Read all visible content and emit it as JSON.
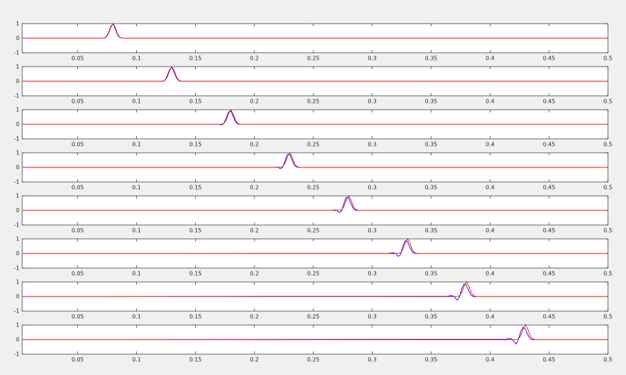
{
  "chart_data": [
    {
      "type": "line",
      "xlim": [
        0.003,
        0.5
      ],
      "ylim": [
        -1,
        1
      ],
      "xticks": [
        0.05,
        0.1,
        0.15,
        0.2,
        0.25,
        0.3,
        0.35,
        0.4,
        0.45,
        0.5
      ],
      "yticks": [
        -1,
        0,
        1
      ],
      "x": [
        0.003,
        0.064,
        0.066,
        0.068,
        0.07,
        0.072,
        0.074,
        0.076,
        0.078,
        0.08,
        0.082,
        0.084,
        0.086,
        0.088,
        0.09,
        0.092,
        0.094,
        0.096,
        0.5
      ],
      "series": [
        {
          "color": "#0000ff",
          "values": [
            0,
            0,
            0,
            0,
            0,
            0.01,
            0.07,
            0.33,
            0.78,
            0.98,
            0.64,
            0.22,
            0.04,
            0.01,
            0,
            0,
            0,
            0,
            0
          ]
        },
        {
          "color": "#ff0000",
          "values": [
            0,
            0,
            0,
            0,
            0,
            0.01,
            0.05,
            0.27,
            0.72,
            1,
            0.72,
            0.27,
            0.05,
            0.01,
            0,
            0,
            0,
            0,
            0
          ]
        }
      ]
    },
    {
      "type": "line",
      "xlim": [
        0.003,
        0.5
      ],
      "ylim": [
        -1,
        1
      ],
      "xticks": [
        0.05,
        0.1,
        0.15,
        0.2,
        0.25,
        0.3,
        0.35,
        0.4,
        0.45,
        0.5
      ],
      "yticks": [
        -1,
        0,
        1
      ],
      "x": [
        0.003,
        0.114,
        0.116,
        0.118,
        0.12,
        0.122,
        0.124,
        0.126,
        0.128,
        0.13,
        0.132,
        0.134,
        0.136,
        0.138,
        0.14,
        0.142,
        0.144,
        0.146,
        0.5
      ],
      "series": [
        {
          "color": "#0000ff",
          "values": [
            0,
            0,
            0,
            0,
            0,
            -0.01,
            0.06,
            0.35,
            0.8,
            0.96,
            0.6,
            0.2,
            0.03,
            0,
            0,
            0,
            0,
            0,
            0
          ]
        },
        {
          "color": "#ff0000",
          "values": [
            0,
            0,
            0,
            0,
            0,
            0.01,
            0.05,
            0.27,
            0.72,
            1,
            0.72,
            0.27,
            0.05,
            0.01,
            0,
            0,
            0,
            0,
            0
          ]
        }
      ]
    },
    {
      "type": "line",
      "xlim": [
        0.003,
        0.5
      ],
      "ylim": [
        -1,
        1
      ],
      "xticks": [
        0.05,
        0.1,
        0.15,
        0.2,
        0.25,
        0.3,
        0.35,
        0.4,
        0.45,
        0.5
      ],
      "yticks": [
        -1,
        0,
        1
      ],
      "x": [
        0.003,
        0.164,
        0.166,
        0.168,
        0.17,
        0.172,
        0.174,
        0.176,
        0.178,
        0.18,
        0.182,
        0.184,
        0.186,
        0.188,
        0.19,
        0.192,
        0.194,
        0.196,
        0.5
      ],
      "series": [
        {
          "color": "#0000ff",
          "values": [
            0,
            0,
            0,
            0,
            0.01,
            -0.04,
            0.05,
            0.4,
            0.85,
            0.92,
            0.55,
            0.17,
            0.02,
            0,
            0,
            0,
            0,
            0,
            0
          ]
        },
        {
          "color": "#ff0000",
          "values": [
            0,
            0,
            0,
            0,
            0,
            0.01,
            0.05,
            0.27,
            0.72,
            1,
            0.72,
            0.27,
            0.05,
            0.01,
            0,
            0,
            0,
            0,
            0
          ]
        }
      ]
    },
    {
      "type": "line",
      "xlim": [
        0.003,
        0.5
      ],
      "ylim": [
        -1,
        1
      ],
      "xticks": [
        0.05,
        0.1,
        0.15,
        0.2,
        0.25,
        0.3,
        0.35,
        0.4,
        0.45,
        0.5
      ],
      "yticks": [
        -1,
        0,
        1
      ],
      "x": [
        0.003,
        0.214,
        0.216,
        0.218,
        0.22,
        0.222,
        0.224,
        0.226,
        0.228,
        0.23,
        0.232,
        0.234,
        0.236,
        0.238,
        0.24,
        0.242,
        0.244,
        0.246,
        0.5
      ],
      "series": [
        {
          "color": "#0000ff",
          "values": [
            0,
            0,
            0,
            0.01,
            0.02,
            -0.1,
            0,
            0.45,
            0.88,
            0.88,
            0.5,
            0.14,
            0.02,
            0,
            0,
            0,
            0,
            0,
            0
          ]
        },
        {
          "color": "#ff0000",
          "values": [
            0,
            0,
            0,
            0,
            0,
            0.01,
            0.05,
            0.27,
            0.72,
            1,
            0.72,
            0.27,
            0.05,
            0.01,
            0,
            0,
            0,
            0,
            0
          ]
        }
      ]
    },
    {
      "type": "line",
      "xlim": [
        0.003,
        0.5
      ],
      "ylim": [
        -1,
        1
      ],
      "xticks": [
        0.05,
        0.1,
        0.15,
        0.2,
        0.25,
        0.3,
        0.35,
        0.4,
        0.45,
        0.5
      ],
      "yticks": [
        -1,
        0,
        1
      ],
      "x": [
        0.003,
        0.264,
        0.266,
        0.268,
        0.27,
        0.272,
        0.274,
        0.276,
        0.278,
        0.28,
        0.282,
        0.284,
        0.286,
        0.288,
        0.29,
        0.292,
        0.294,
        0.296,
        0.5
      ],
      "series": [
        {
          "color": "#0000ff",
          "values": [
            0,
            0,
            0.01,
            0.03,
            0.02,
            -0.15,
            -0.05,
            0.5,
            0.9,
            0.84,
            0.45,
            0.12,
            0.01,
            0,
            0,
            0,
            0,
            0,
            0
          ]
        },
        {
          "color": "#ff0000",
          "values": [
            0,
            0,
            0,
            0,
            0,
            0.01,
            0.05,
            0.27,
            0.72,
            1,
            0.72,
            0.27,
            0.05,
            0.01,
            0,
            0,
            0,
            0,
            0
          ]
        }
      ]
    },
    {
      "type": "line",
      "xlim": [
        0.003,
        0.5
      ],
      "ylim": [
        -1,
        1
      ],
      "xticks": [
        0.05,
        0.1,
        0.15,
        0.2,
        0.25,
        0.3,
        0.35,
        0.4,
        0.45,
        0.5
      ],
      "yticks": [
        -1,
        0,
        1
      ],
      "x": [
        0.003,
        0.314,
        0.316,
        0.318,
        0.32,
        0.322,
        0.324,
        0.326,
        0.328,
        0.33,
        0.332,
        0.334,
        0.336,
        0.338,
        0.34,
        0.342,
        0.344,
        0.346,
        0.5
      ],
      "series": [
        {
          "color": "#0000ff",
          "values": [
            0,
            0.01,
            0.03,
            0.05,
            0,
            -0.2,
            -0.08,
            0.52,
            0.88,
            0.8,
            0.4,
            0.1,
            0.01,
            0,
            0,
            0,
            0,
            0,
            0
          ]
        },
        {
          "color": "#ff0000",
          "values": [
            0,
            0,
            0,
            0,
            0,
            0.01,
            0.05,
            0.27,
            0.72,
            1,
            0.72,
            0.27,
            0.05,
            0.01,
            0,
            0,
            0,
            0,
            0
          ]
        }
      ]
    },
    {
      "type": "line",
      "xlim": [
        0.003,
        0.5
      ],
      "ylim": [
        -1,
        1
      ],
      "xticks": [
        0.05,
        0.1,
        0.15,
        0.2,
        0.25,
        0.3,
        0.35,
        0.4,
        0.45,
        0.5
      ],
      "yticks": [
        -1,
        0,
        1
      ],
      "x": [
        0.003,
        0.364,
        0.366,
        0.368,
        0.37,
        0.372,
        0.374,
        0.376,
        0.378,
        0.38,
        0.382,
        0.384,
        0.386,
        0.388,
        0.39,
        0.392,
        0.394,
        0.396,
        0.5
      ],
      "series": [
        {
          "color": "#0000ff",
          "values": [
            0,
            0.02,
            0.05,
            0.06,
            -0.05,
            -0.25,
            -0.05,
            0.55,
            0.87,
            0.76,
            0.36,
            0.08,
            0,
            0,
            0,
            0,
            0,
            0,
            0
          ]
        },
        {
          "color": "#ff0000",
          "values": [
            0,
            0,
            0,
            0,
            0,
            0.01,
            0.05,
            0.27,
            0.72,
            1,
            0.72,
            0.27,
            0.05,
            0.01,
            0,
            0,
            0,
            0,
            0
          ]
        }
      ]
    },
    {
      "type": "line",
      "xlim": [
        0.003,
        0.5
      ],
      "ylim": [
        -1,
        1
      ],
      "xticks": [
        0.05,
        0.1,
        0.15,
        0.2,
        0.25,
        0.3,
        0.35,
        0.4,
        0.45,
        0.5
      ],
      "yticks": [
        -1,
        0,
        1
      ],
      "x": [
        0.003,
        0.414,
        0.416,
        0.418,
        0.42,
        0.422,
        0.424,
        0.426,
        0.428,
        0.43,
        0.432,
        0.434,
        0.436,
        0.438,
        0.44,
        0.442,
        0.444,
        0.446,
        0.5
      ],
      "series": [
        {
          "color": "#0000ff",
          "values": [
            0,
            0.03,
            0.07,
            0.05,
            -0.1,
            -0.3,
            -0.02,
            0.56,
            0.85,
            0.72,
            0.32,
            0.06,
            0,
            0,
            0,
            0,
            0,
            0,
            0
          ]
        },
        {
          "color": "#ff0000",
          "values": [
            0,
            0,
            0,
            0,
            0,
            0.01,
            0.05,
            0.27,
            0.72,
            1,
            0.72,
            0.27,
            0.05,
            0.01,
            0,
            0,
            0,
            0,
            0
          ]
        }
      ]
    }
  ]
}
